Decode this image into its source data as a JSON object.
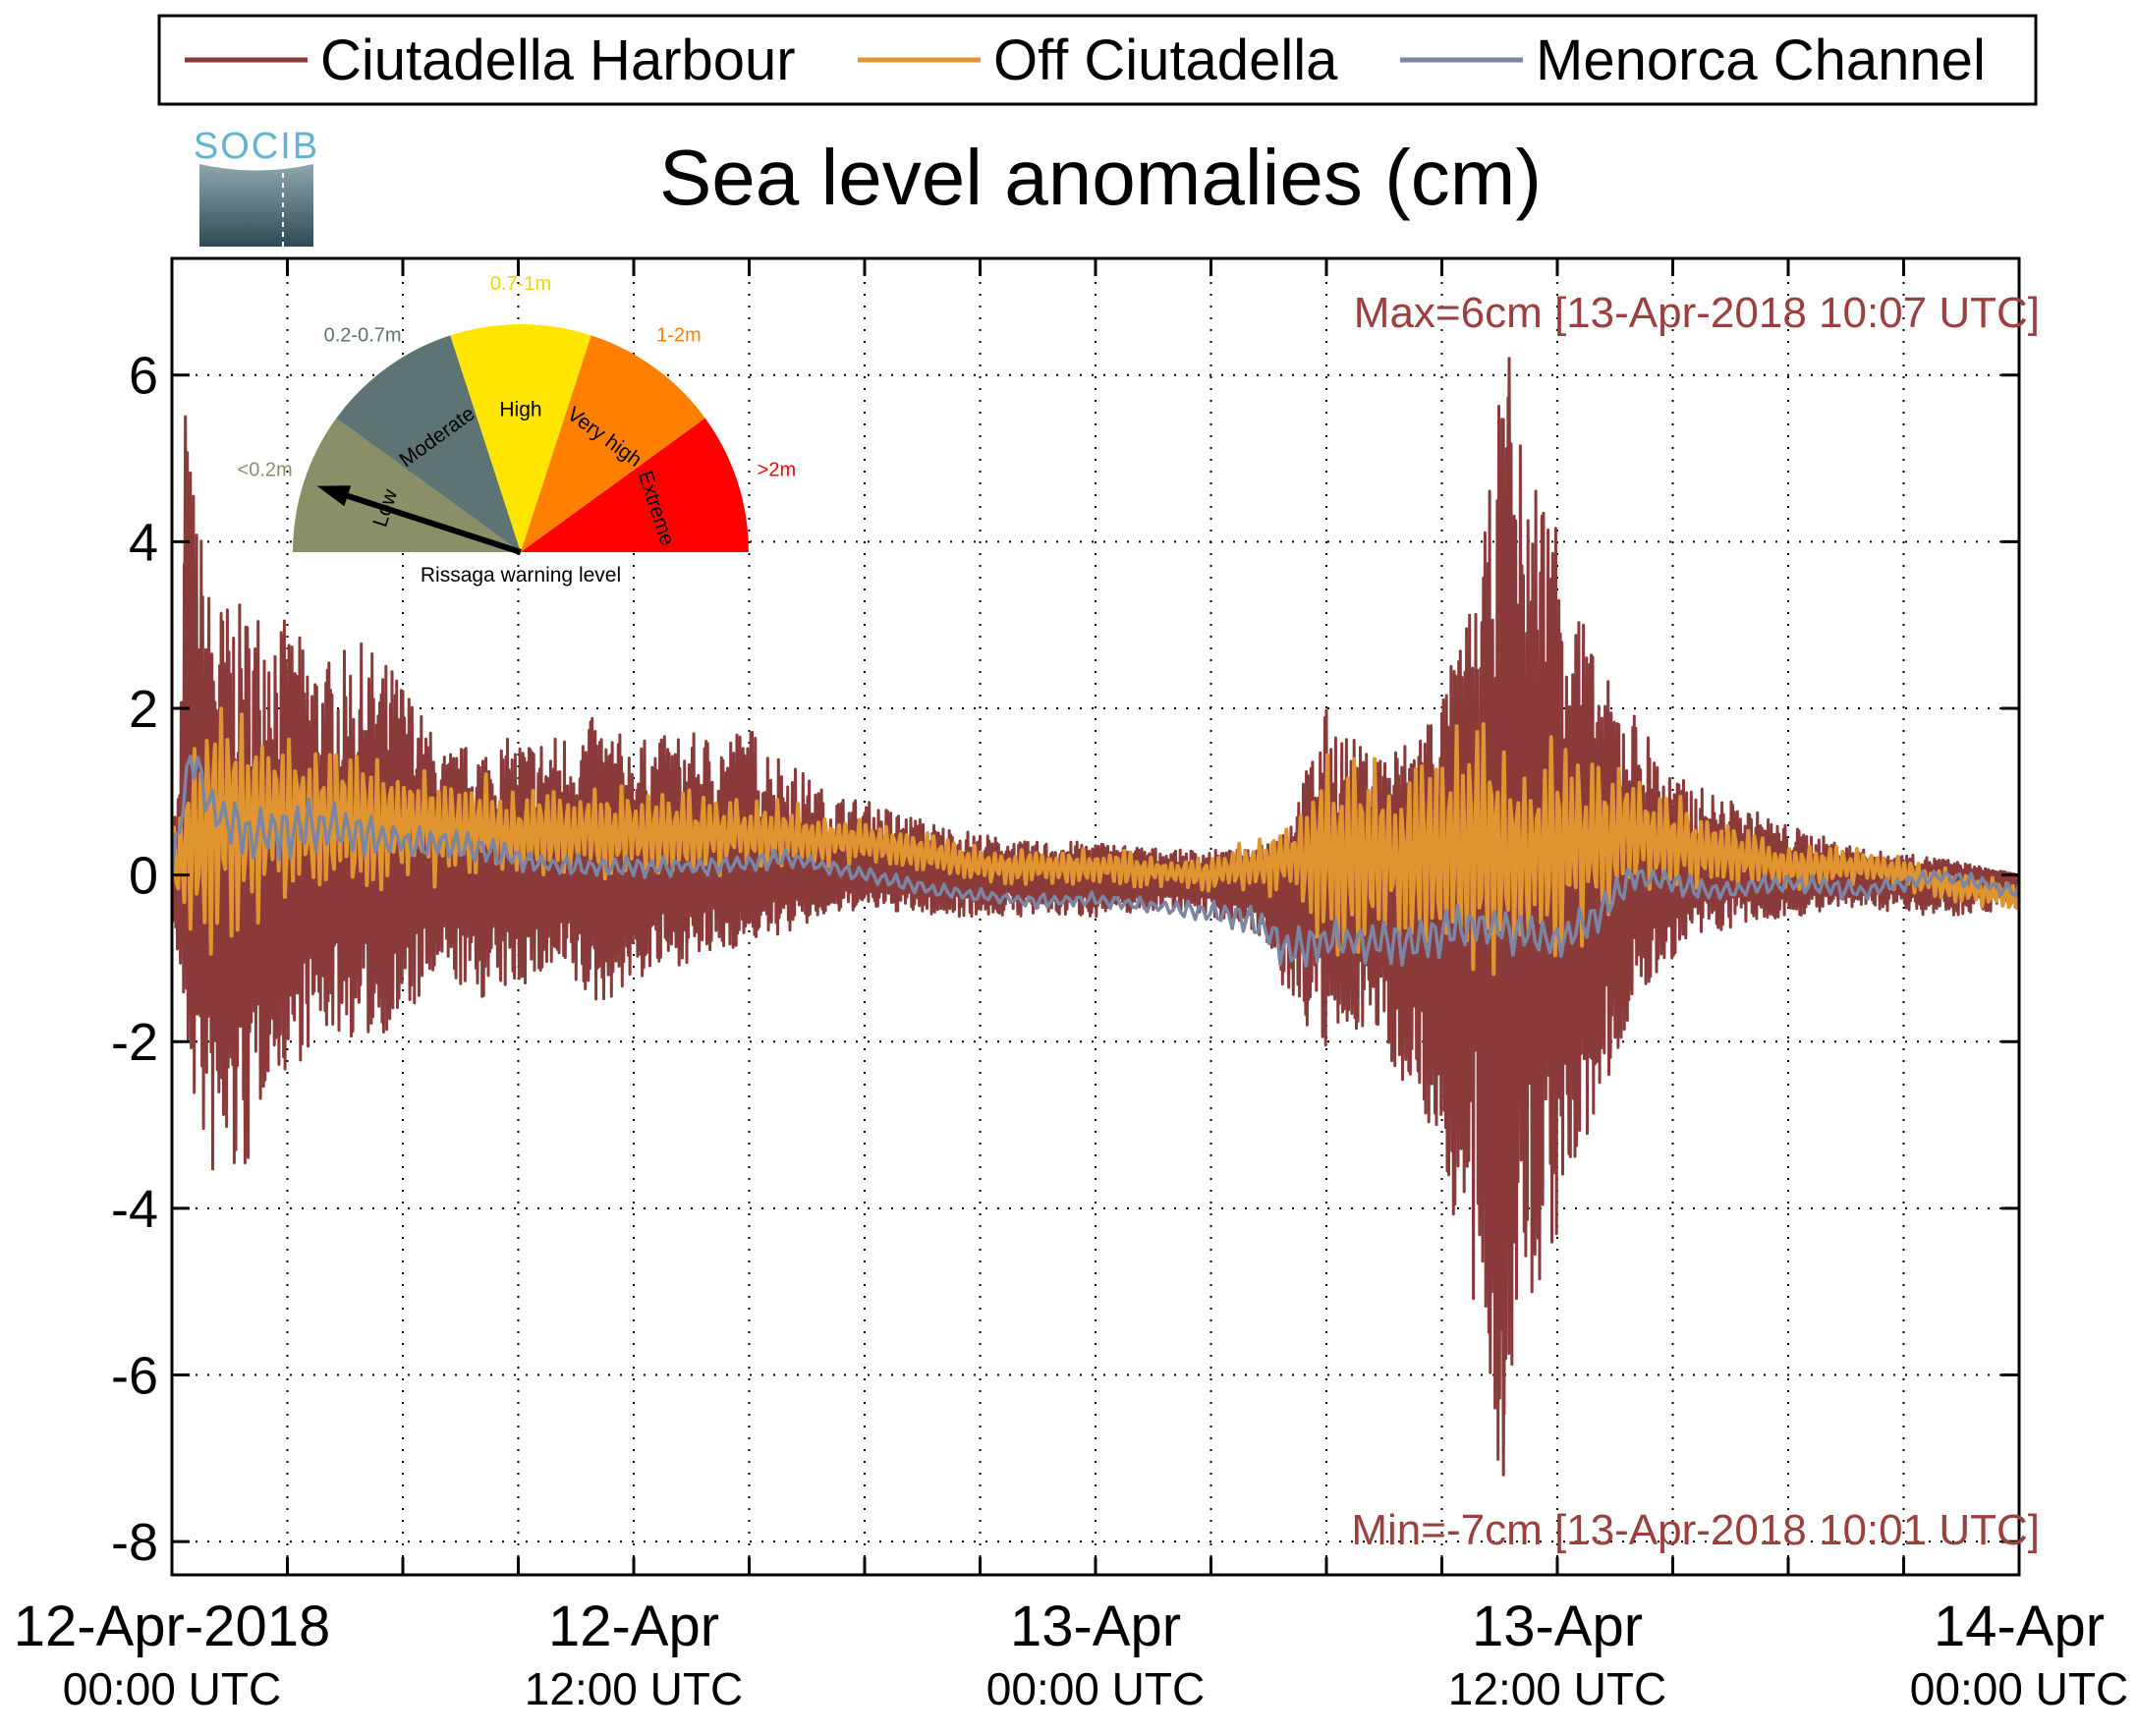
{
  "chart_data": {
    "type": "line",
    "title": "Sea level anomalies (cm)",
    "logo_text": "SOCIB",
    "xlabel": "",
    "ylabel": "",
    "ylim": [
      -8.4,
      7.4
    ],
    "y_ticks": [
      6,
      4,
      2,
      0,
      -2,
      -4,
      -6,
      -8
    ],
    "y_tick_labels": [
      "6",
      "4",
      "2",
      "0",
      "-2",
      "-4",
      "-6",
      "-8"
    ],
    "x_range_hours": [
      0,
      48
    ],
    "x_major_ticks": [
      {
        "hour": 0,
        "date": "12-Apr-2018",
        "time": "00:00 UTC"
      },
      {
        "hour": 12,
        "date": "12-Apr",
        "time": "12:00 UTC"
      },
      {
        "hour": 24,
        "date": "13-Apr",
        "time": "00:00 UTC"
      },
      {
        "hour": 36,
        "date": "13-Apr",
        "time": "12:00 UTC"
      },
      {
        "hour": 48,
        "date": "14-Apr",
        "time": "00:00 UTC"
      }
    ],
    "x_minor_tick_hours": [
      3,
      6,
      9,
      15,
      18,
      21,
      27,
      30,
      33,
      39,
      42,
      45
    ],
    "grid": true,
    "legend_position": "top",
    "series": [
      {
        "name": "Ciutadella Harbour",
        "color": "#8B3A3A",
        "envelope_points": [
          [
            0,
            0.6
          ],
          [
            0.2,
            1.2
          ],
          [
            0.35,
            5.5
          ],
          [
            1.0,
            3.4
          ],
          [
            1.5,
            3.3
          ],
          [
            2.0,
            3.2
          ],
          [
            2.5,
            3.4
          ],
          [
            3,
            3.0
          ],
          [
            4,
            2.6
          ],
          [
            5,
            2.8
          ],
          [
            6,
            2.4
          ],
          [
            7,
            1.5
          ],
          [
            8,
            1.6
          ],
          [
            10,
            1.7
          ],
          [
            11,
            1.9
          ],
          [
            12,
            1.6
          ],
          [
            13,
            1.7
          ],
          [
            14,
            1.7
          ],
          [
            15,
            1.8
          ],
          [
            16,
            1.4
          ],
          [
            17,
            1.0
          ],
          [
            18,
            0.9
          ],
          [
            20,
            0.6
          ],
          [
            22,
            0.4
          ],
          [
            24,
            0.4
          ],
          [
            26,
            0.3
          ],
          [
            28,
            0.3
          ],
          [
            29,
            0.6
          ],
          [
            30,
            2.0
          ],
          [
            31,
            1.5
          ],
          [
            32,
            1.6
          ],
          [
            33,
            2.2
          ],
          [
            34,
            3.6
          ],
          [
            34.6,
            6.2
          ],
          [
            35,
            5.3
          ],
          [
            36,
            4.5
          ],
          [
            37,
            2.5
          ],
          [
            38,
            2.0
          ],
          [
            39,
            1.2
          ],
          [
            40,
            1.0
          ],
          [
            42,
            0.6
          ],
          [
            44,
            0.3
          ],
          [
            46,
            0.2
          ],
          [
            48,
            0.0
          ]
        ],
        "lower_envelope_points": [
          [
            0,
            -0.5
          ],
          [
            0.2,
            -1.3
          ],
          [
            0.5,
            -2.6
          ],
          [
            1.0,
            -3.7
          ],
          [
            1.5,
            -3.8
          ],
          [
            2.0,
            -3.6
          ],
          [
            2.5,
            -2.4
          ],
          [
            3,
            -2.4
          ],
          [
            4,
            -1.9
          ],
          [
            5,
            -2.0
          ],
          [
            6,
            -1.8
          ],
          [
            7,
            -1.2
          ],
          [
            8,
            -1.5
          ],
          [
            10,
            -1.2
          ],
          [
            11,
            -1.6
          ],
          [
            12,
            -1.3
          ],
          [
            13,
            -1.1
          ],
          [
            14,
            -1.0
          ],
          [
            15,
            -0.8
          ],
          [
            16,
            -0.7
          ],
          [
            17,
            -0.5
          ],
          [
            18,
            -0.4
          ],
          [
            20,
            -0.5
          ],
          [
            22,
            -0.5
          ],
          [
            24,
            -0.5
          ],
          [
            26,
            -0.4
          ],
          [
            28,
            -0.6
          ],
          [
            29,
            -1.5
          ],
          [
            30,
            -2.2
          ],
          [
            31,
            -1.8
          ],
          [
            32,
            -2.5
          ],
          [
            33,
            -3.4
          ],
          [
            34,
            -6.0
          ],
          [
            34.5,
            -7.2
          ],
          [
            35,
            -5.8
          ],
          [
            36,
            -4.4
          ],
          [
            37,
            -3.0
          ],
          [
            38,
            -1.6
          ],
          [
            39,
            -1.0
          ],
          [
            40,
            -0.7
          ],
          [
            42,
            -0.5
          ],
          [
            44,
            -0.4
          ],
          [
            46,
            -0.5
          ],
          [
            48,
            -0.4
          ]
        ],
        "peak_points": [
          [
            0.35,
            5.5
          ],
          [
            34.75,
            6.2
          ],
          [
            34.6,
            -7.2
          ]
        ]
      },
      {
        "name": "Off Ciutadella",
        "color": "#E09530",
        "baseline_points": [
          [
            0,
            0.1
          ],
          [
            1,
            0.7
          ],
          [
            3,
            0.7
          ],
          [
            6,
            0.6
          ],
          [
            9,
            0.5
          ],
          [
            12,
            0.5
          ],
          [
            15,
            0.5
          ],
          [
            18,
            0.4
          ],
          [
            21,
            0.1
          ],
          [
            24,
            0.1
          ],
          [
            27,
            0.0
          ],
          [
            30,
            0.3
          ],
          [
            32,
            0.2
          ],
          [
            34,
            0.3
          ],
          [
            36,
            0.3
          ],
          [
            38,
            0.5
          ],
          [
            40,
            0.3
          ],
          [
            42,
            0.1
          ],
          [
            44,
            0.1
          ],
          [
            46,
            -0.1
          ],
          [
            48,
            -0.3
          ]
        ],
        "amplitude_points": [
          [
            0,
            0.5
          ],
          [
            1,
            1.8
          ],
          [
            3,
            1.3
          ],
          [
            6,
            0.9
          ],
          [
            9,
            0.6
          ],
          [
            12,
            0.6
          ],
          [
            15,
            0.5
          ],
          [
            18,
            0.3
          ],
          [
            21,
            0.25
          ],
          [
            24,
            0.25
          ],
          [
            27,
            0.2
          ],
          [
            29,
            0.5
          ],
          [
            30,
            1.4
          ],
          [
            32,
            1.2
          ],
          [
            34,
            1.8
          ],
          [
            36,
            1.5
          ],
          [
            38,
            0.8
          ],
          [
            40,
            0.5
          ],
          [
            42,
            0.3
          ],
          [
            44,
            0.25
          ],
          [
            46,
            0.2
          ],
          [
            48,
            0.2
          ]
        ]
      },
      {
        "name": "Menorca Channel",
        "color": "#7A86A4",
        "baseline_points": [
          [
            0,
            0.0
          ],
          [
            0.5,
            1.5
          ],
          [
            1,
            0.8
          ],
          [
            2,
            0.5
          ],
          [
            4,
            0.6
          ],
          [
            5,
            0.5
          ],
          [
            6,
            0.4
          ],
          [
            8,
            0.3
          ],
          [
            10,
            0.1
          ],
          [
            12,
            0.1
          ],
          [
            14,
            0.1
          ],
          [
            16,
            0.2
          ],
          [
            18,
            0.0
          ],
          [
            20,
            -0.2
          ],
          [
            22,
            -0.3
          ],
          [
            24,
            -0.3
          ],
          [
            26,
            -0.4
          ],
          [
            28,
            -0.5
          ],
          [
            29,
            -0.9
          ],
          [
            30,
            -0.8
          ],
          [
            32,
            -0.8
          ],
          [
            34,
            -0.6
          ],
          [
            36,
            -0.8
          ],
          [
            37,
            -0.5
          ],
          [
            38,
            0.0
          ],
          [
            40,
            -0.2
          ],
          [
            42,
            -0.1
          ],
          [
            44,
            -0.2
          ],
          [
            46,
            0.0
          ],
          [
            48,
            -0.2
          ]
        ],
        "amplitude_points": [
          [
            0,
            0.2
          ],
          [
            0.5,
            0.3
          ],
          [
            1,
            0.4
          ],
          [
            3,
            0.4
          ],
          [
            6,
            0.25
          ],
          [
            10,
            0.15
          ],
          [
            16,
            0.12
          ],
          [
            20,
            0.1
          ],
          [
            26,
            0.1
          ],
          [
            29,
            0.3
          ],
          [
            31,
            0.3
          ],
          [
            35,
            0.3
          ],
          [
            37,
            0.25
          ],
          [
            40,
            0.15
          ],
          [
            44,
            0.12
          ],
          [
            48,
            0.1
          ]
        ]
      }
    ],
    "annotations": {
      "max": "Max=6cm [13-Apr-2018 10:07 UTC]",
      "min": "Min=-7cm [13-Apr-2018 10:01 UTC]"
    }
  },
  "gauge": {
    "caption": "Rissaga warning level",
    "pointer_sector": 0,
    "sectors": [
      {
        "label": "Low",
        "range": "<0.2m",
        "color": "#8A8F68"
      },
      {
        "label": "Moderate",
        "range": "0.2-0.7m",
        "color": "#5E7474"
      },
      {
        "label": "High",
        "range": "0.7-1m",
        "color": "#FFE500"
      },
      {
        "label": "Very high",
        "range": "1-2m",
        "color": "#FF8000"
      },
      {
        "label": "Extreme",
        "range": ">2m",
        "color": "#FF0000"
      }
    ]
  }
}
